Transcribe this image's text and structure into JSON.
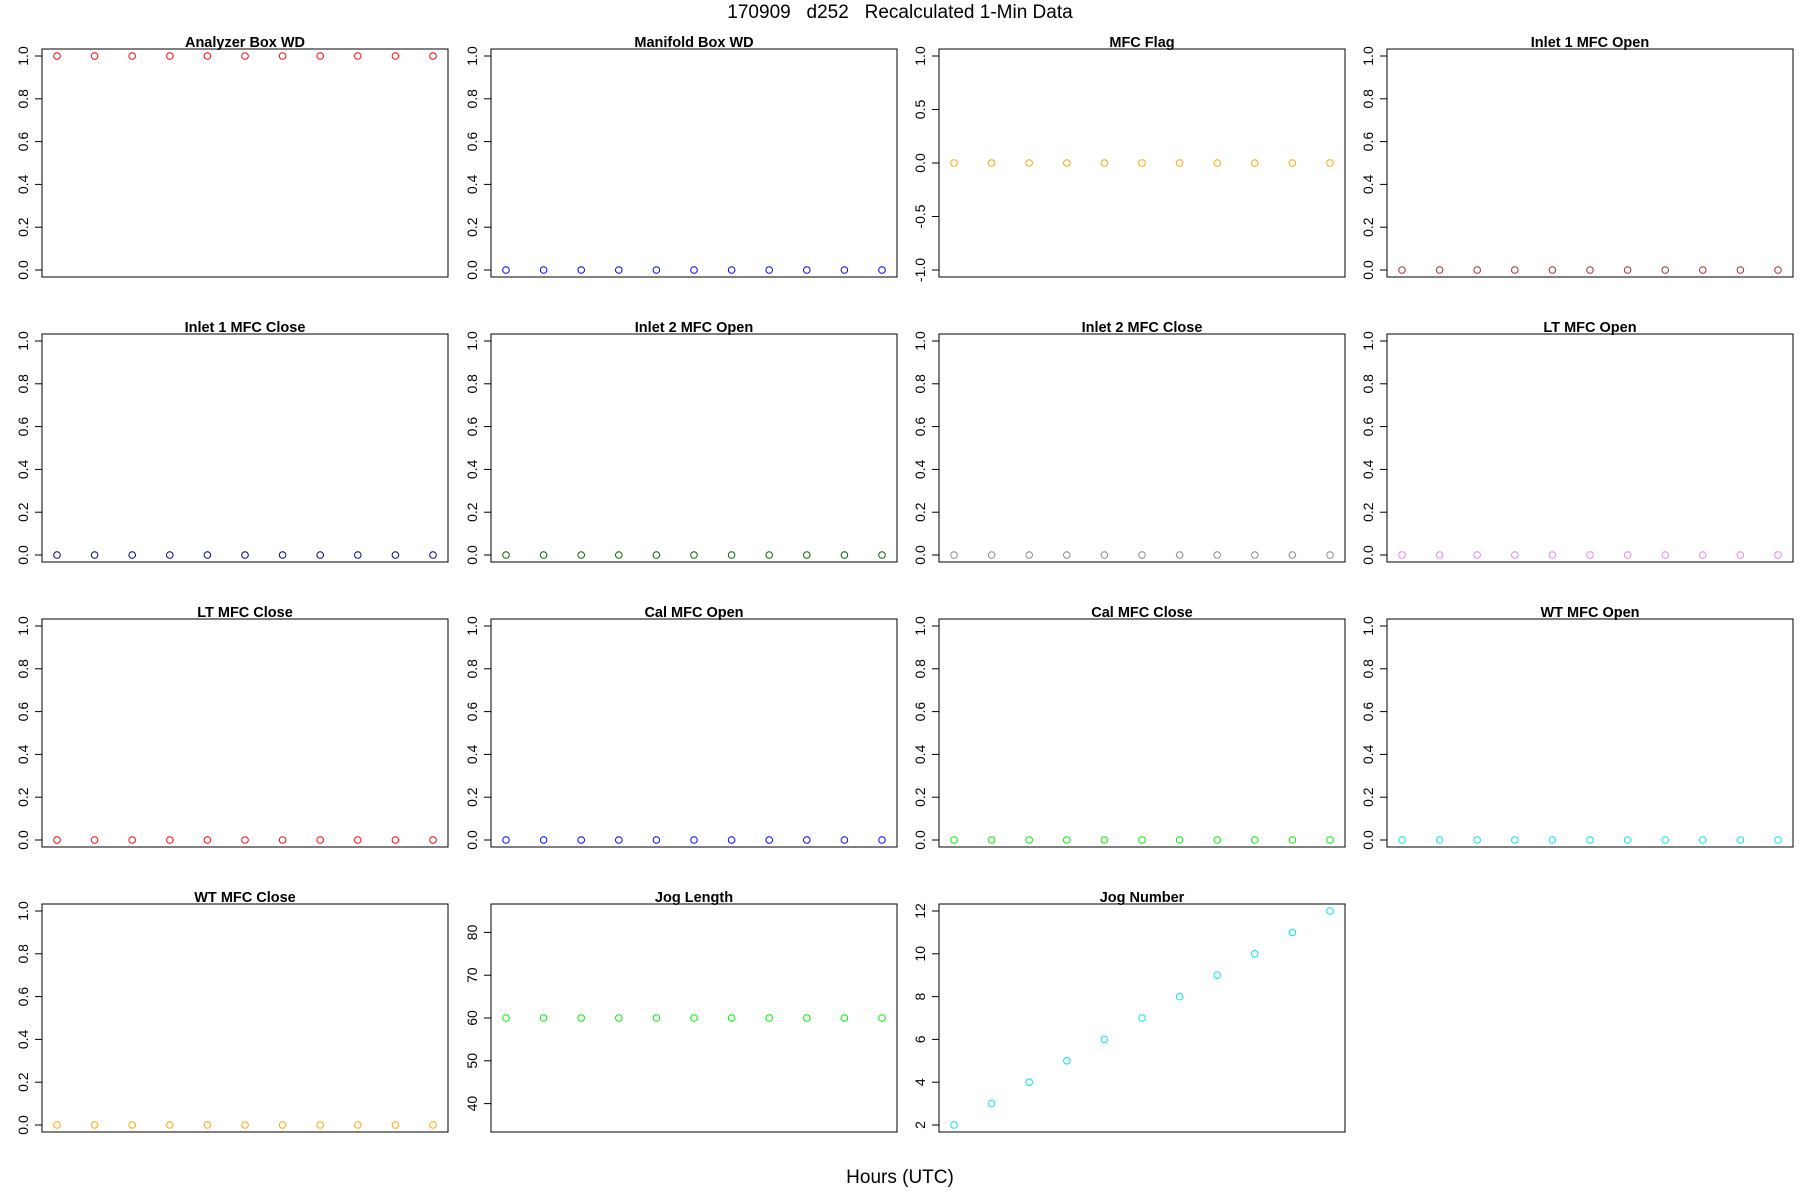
{
  "figure": {
    "title": "170909   d252   Recalculated 1-Min Data",
    "xlabel": "Hours (UTC)"
  },
  "chart_data": [
    {
      "type": "scatter",
      "title": "Analyzer Box WD",
      "color": "#ff0000",
      "ylim": [
        0,
        1
      ],
      "yticks": [
        "0.0",
        "0.2",
        "0.4",
        "0.6",
        "0.8",
        "1.0"
      ],
      "x": [
        1,
        2,
        3,
        4,
        5,
        6,
        7,
        8,
        9,
        10,
        11
      ],
      "values": [
        1,
        1,
        1,
        1,
        1,
        1,
        1,
        1,
        1,
        1,
        1
      ]
    },
    {
      "type": "scatter",
      "title": "Manifold Box WD",
      "color": "#0000ff",
      "ylim": [
        0,
        1
      ],
      "yticks": [
        "0.0",
        "0.2",
        "0.4",
        "0.6",
        "0.8",
        "1.0"
      ],
      "x": [
        1,
        2,
        3,
        4,
        5,
        6,
        7,
        8,
        9,
        10,
        11
      ],
      "values": [
        0,
        0,
        0,
        0,
        0,
        0,
        0,
        0,
        0,
        0,
        0
      ]
    },
    {
      "type": "scatter",
      "title": "MFC Flag",
      "color": "#ffa500",
      "ylim": [
        -1,
        1
      ],
      "yticks": [
        "-1.0",
        "-0.5",
        "0.0",
        "0.5",
        "1.0"
      ],
      "x": [
        1,
        2,
        3,
        4,
        5,
        6,
        7,
        8,
        9,
        10,
        11
      ],
      "values": [
        0,
        0,
        0,
        0,
        0,
        0,
        0,
        0,
        0,
        0,
        0
      ]
    },
    {
      "type": "scatter",
      "title": "Inlet 1 MFC Open",
      "color": "#a52a2a",
      "ylim": [
        0,
        1
      ],
      "yticks": [
        "0.0",
        "0.2",
        "0.4",
        "0.6",
        "0.8",
        "1.0"
      ],
      "x": [
        1,
        2,
        3,
        4,
        5,
        6,
        7,
        8,
        9,
        10,
        11
      ],
      "values": [
        0,
        0,
        0,
        0,
        0,
        0,
        0,
        0,
        0,
        0,
        0
      ]
    },
    {
      "type": "scatter",
      "title": "Inlet 1 MFC Close",
      "color": "#00008b",
      "ylim": [
        0,
        1
      ],
      "yticks": [
        "0.0",
        "0.2",
        "0.4",
        "0.6",
        "0.8",
        "1.0"
      ],
      "x": [
        1,
        2,
        3,
        4,
        5,
        6,
        7,
        8,
        9,
        10,
        11
      ],
      "values": [
        0,
        0,
        0,
        0,
        0,
        0,
        0,
        0,
        0,
        0,
        0
      ]
    },
    {
      "type": "scatter",
      "title": "Inlet 2 MFC Open",
      "color": "#006400",
      "ylim": [
        0,
        1
      ],
      "yticks": [
        "0.0",
        "0.2",
        "0.4",
        "0.6",
        "0.8",
        "1.0"
      ],
      "x": [
        1,
        2,
        3,
        4,
        5,
        6,
        7,
        8,
        9,
        10,
        11
      ],
      "values": [
        0,
        0,
        0,
        0,
        0,
        0,
        0,
        0,
        0,
        0,
        0
      ]
    },
    {
      "type": "scatter",
      "title": "Inlet 2 MFC Close",
      "color": "#888888",
      "ylim": [
        0,
        1
      ],
      "yticks": [
        "0.0",
        "0.2",
        "0.4",
        "0.6",
        "0.8",
        "1.0"
      ],
      "x": [
        1,
        2,
        3,
        4,
        5,
        6,
        7,
        8,
        9,
        10,
        11
      ],
      "values": [
        0,
        0,
        0,
        0,
        0,
        0,
        0,
        0,
        0,
        0,
        0
      ]
    },
    {
      "type": "scatter",
      "title": "LT MFC Open",
      "color": "#ee82ee",
      "ylim": [
        0,
        1
      ],
      "yticks": [
        "0.0",
        "0.2",
        "0.4",
        "0.6",
        "0.8",
        "1.0"
      ],
      "x": [
        1,
        2,
        3,
        4,
        5,
        6,
        7,
        8,
        9,
        10,
        11
      ],
      "values": [
        0,
        0,
        0,
        0,
        0,
        0,
        0,
        0,
        0,
        0,
        0
      ]
    },
    {
      "type": "scatter",
      "title": "LT MFC Close",
      "color": "#ff0000",
      "ylim": [
        0,
        1
      ],
      "yticks": [
        "0.0",
        "0.2",
        "0.4",
        "0.6",
        "0.8",
        "1.0"
      ],
      "x": [
        1,
        2,
        3,
        4,
        5,
        6,
        7,
        8,
        9,
        10,
        11
      ],
      "values": [
        0,
        0,
        0,
        0,
        0,
        0,
        0,
        0,
        0,
        0,
        0
      ]
    },
    {
      "type": "scatter",
      "title": "Cal MFC Open",
      "color": "#0000ff",
      "ylim": [
        0,
        1
      ],
      "yticks": [
        "0.0",
        "0.2",
        "0.4",
        "0.6",
        "0.8",
        "1.0"
      ],
      "x": [
        1,
        2,
        3,
        4,
        5,
        6,
        7,
        8,
        9,
        10,
        11
      ],
      "values": [
        0,
        0,
        0,
        0,
        0,
        0,
        0,
        0,
        0,
        0,
        0
      ]
    },
    {
      "type": "scatter",
      "title": "Cal MFC Close",
      "color": "#00ee00",
      "ylim": [
        0,
        1
      ],
      "yticks": [
        "0.0",
        "0.2",
        "0.4",
        "0.6",
        "0.8",
        "1.0"
      ],
      "x": [
        1,
        2,
        3,
        4,
        5,
        6,
        7,
        8,
        9,
        10,
        11
      ],
      "values": [
        0,
        0,
        0,
        0,
        0,
        0,
        0,
        0,
        0,
        0,
        0
      ]
    },
    {
      "type": "scatter",
      "title": "WT MFC Open",
      "color": "#00e5ee",
      "ylim": [
        0,
        1
      ],
      "yticks": [
        "0.0",
        "0.2",
        "0.4",
        "0.6",
        "0.8",
        "1.0"
      ],
      "x": [
        1,
        2,
        3,
        4,
        5,
        6,
        7,
        8,
        9,
        10,
        11
      ],
      "values": [
        0,
        0,
        0,
        0,
        0,
        0,
        0,
        0,
        0,
        0,
        0
      ]
    },
    {
      "type": "scatter",
      "title": "WT MFC Close",
      "color": "#ffa500",
      "ylim": [
        0,
        1
      ],
      "yticks": [
        "0.0",
        "0.2",
        "0.4",
        "0.6",
        "0.8",
        "1.0"
      ],
      "x": [
        1,
        2,
        3,
        4,
        5,
        6,
        7,
        8,
        9,
        10,
        11
      ],
      "values": [
        0,
        0,
        0,
        0,
        0,
        0,
        0,
        0,
        0,
        0,
        0
      ]
    },
    {
      "type": "scatter",
      "title": "Jog Length",
      "color": "#00ee00",
      "ylim": [
        35,
        85
      ],
      "yticks": [
        "40",
        "50",
        "60",
        "70",
        "80"
      ],
      "x": [
        1,
        2,
        3,
        4,
        5,
        6,
        7,
        8,
        9,
        10,
        11
      ],
      "values": [
        60,
        60,
        60,
        60,
        60,
        60,
        60,
        60,
        60,
        60,
        60
      ]
    },
    {
      "type": "scatter",
      "title": "Jog Number",
      "color": "#00e5ee",
      "ylim": [
        2,
        12
      ],
      "yticks": [
        "2",
        "4",
        "6",
        "8",
        "10",
        "12"
      ],
      "x": [
        1,
        2,
        3,
        4,
        5,
        6,
        7,
        8,
        9,
        10,
        11
      ],
      "values": [
        2,
        3,
        4,
        5,
        6,
        7,
        8,
        9,
        10,
        11,
        12
      ]
    }
  ]
}
